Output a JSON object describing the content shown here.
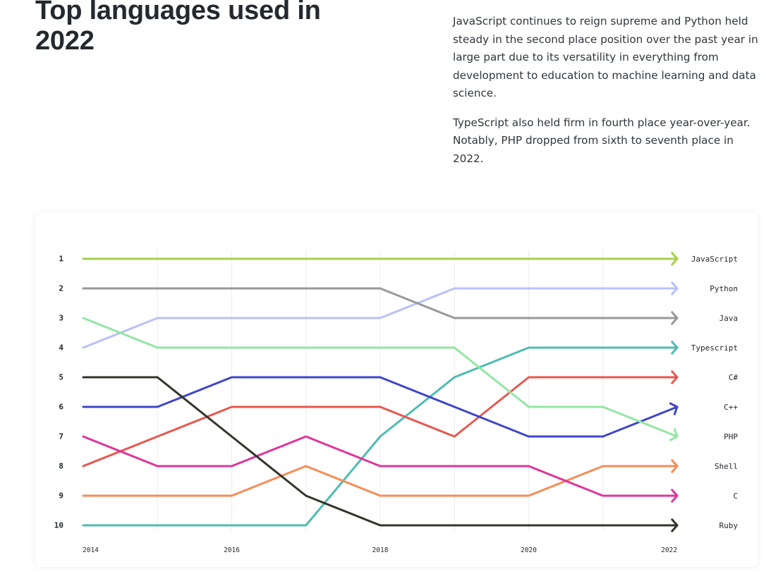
{
  "heading": "Top languages used in 2022",
  "paragraphs": [
    "JavaScript continues to reign supreme and Python held steady in the second place position over the past year in large part due to its versatility in everything from development to education to machine learning and data science.",
    "TypeScript also held firm in fourth place year-over-year. Notably, PHP dropped from sixth to seventh place in 2022."
  ],
  "chart_data": {
    "type": "line",
    "subtype": "bump",
    "y_inverted": true,
    "x": [
      2014,
      2015,
      2016,
      2017,
      2018,
      2019,
      2020,
      2021,
      2022
    ],
    "x_tick_labels": [
      "2014",
      "2016",
      "2018",
      "2020",
      "2022"
    ],
    "y_tick_labels": [
      "1",
      "2",
      "3",
      "4",
      "5",
      "6",
      "7",
      "8",
      "9",
      "10"
    ],
    "ylim": [
      1,
      10
    ],
    "grid": "vertical",
    "legend": "end-labels-right",
    "series": [
      {
        "name": "JavaScript",
        "color": "#a6cf4c",
        "values": [
          1,
          1,
          1,
          1,
          1,
          1,
          1,
          1,
          1
        ]
      },
      {
        "name": "Python",
        "color": "#b9c0fb",
        "values": [
          4,
          3,
          3,
          3,
          3,
          2,
          2,
          2,
          2
        ]
      },
      {
        "name": "Java",
        "color": "#999999",
        "values": [
          2,
          2,
          2,
          2,
          2,
          3,
          3,
          3,
          3
        ]
      },
      {
        "name": "Typescript",
        "color": "#4ebcb3",
        "values": [
          10,
          10,
          10,
          10,
          7,
          5,
          4,
          4,
          4
        ]
      },
      {
        "name": "C#",
        "color": "#e8574f",
        "values": [
          8,
          7,
          6,
          6,
          6,
          7,
          5,
          5,
          5
        ]
      },
      {
        "name": "C++",
        "color": "#3f45c8",
        "values": [
          6,
          6,
          5,
          5,
          5,
          6,
          7,
          7,
          6
        ]
      },
      {
        "name": "PHP",
        "color": "#92e6a3",
        "values": [
          3,
          4,
          4,
          4,
          4,
          4,
          6,
          6,
          7
        ]
      },
      {
        "name": "Shell",
        "color": "#f68c57",
        "values": [
          9,
          9,
          9,
          8,
          9,
          9,
          9,
          8,
          8
        ]
      },
      {
        "name": "C",
        "color": "#df359c",
        "values": [
          7,
          8,
          8,
          7,
          8,
          8,
          8,
          9,
          9
        ]
      },
      {
        "name": "Ruby",
        "color": "#34342b",
        "values": [
          5,
          5,
          7,
          9,
          10,
          10,
          10,
          10,
          10
        ]
      }
    ]
  }
}
